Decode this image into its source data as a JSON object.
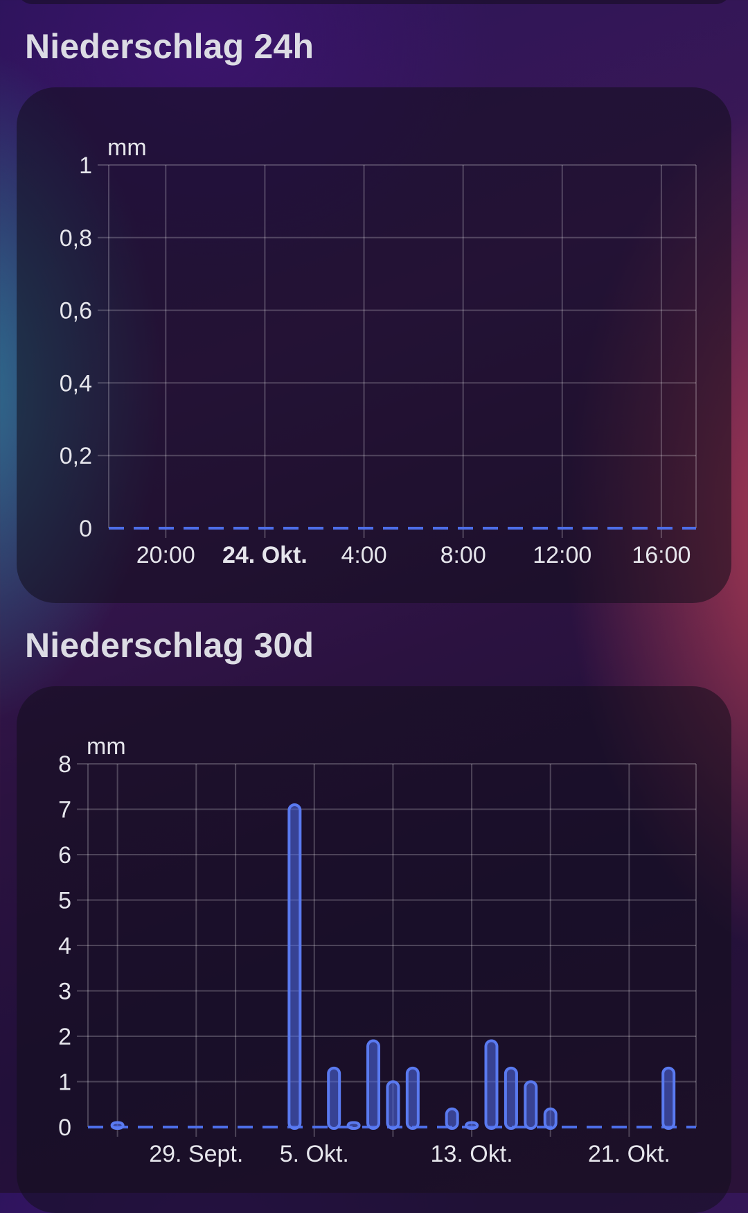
{
  "sections": [
    {
      "title": "Niederschlag 24h",
      "chart_data": {
        "type": "bar",
        "ylabel": "mm",
        "ylim": [
          0,
          1
        ],
        "yticks": [
          "0",
          "0,2",
          "0,4",
          "0,6",
          "0,8",
          "1"
        ],
        "xticks": [
          {
            "label": "20:00",
            "hour": 20,
            "bold": false
          },
          {
            "label": "24. Okt.",
            "hour": 24,
            "bold": true
          },
          {
            "label": "4:00",
            "hour": 28,
            "bold": false
          },
          {
            "label": "8:00",
            "hour": 32,
            "bold": false
          },
          {
            "label": "12:00",
            "hour": 36,
            "bold": false
          },
          {
            "label": "16:00",
            "hour": 40,
            "bold": false
          }
        ],
        "xlim": [
          17.7,
          41.4
        ],
        "values": [
          0,
          0,
          0,
          0,
          0,
          0,
          0,
          0,
          0,
          0,
          0,
          0,
          0,
          0,
          0,
          0,
          0,
          0,
          0,
          0,
          0,
          0,
          0,
          0
        ]
      }
    },
    {
      "title": "Niederschlag 30d",
      "chart_data": {
        "type": "bar",
        "ylabel": "mm",
        "ylim": [
          0,
          8
        ],
        "yticks": [
          "0",
          "1",
          "2",
          "3",
          "4",
          "5",
          "6",
          "7",
          "8"
        ],
        "xticks": [
          {
            "label": "29. Sept.",
            "day": 29,
            "bold": false
          },
          {
            "label": "5. Okt.",
            "day": 35,
            "bold": false
          },
          {
            "label": "13. Okt.",
            "day": 43,
            "bold": false
          },
          {
            "label": "21. Okt.",
            "day": 51,
            "bold": false
          }
        ],
        "xlim": [
          23.5,
          54.4
        ],
        "days": [
          24,
          25,
          26,
          27,
          28,
          29,
          30,
          31,
          32,
          33,
          34,
          35,
          36,
          37,
          38,
          39,
          40,
          41,
          42,
          43,
          44,
          45,
          46,
          47,
          48,
          49,
          50,
          51,
          52,
          53,
          54
        ],
        "values": [
          0,
          0.1,
          0,
          0,
          0,
          0,
          0,
          0,
          0,
          0,
          7.1,
          0,
          1.3,
          0.1,
          1.9,
          1.0,
          1.3,
          0,
          0.4,
          0.1,
          1.9,
          1.3,
          1.0,
          0.4,
          0,
          0,
          0,
          0,
          0,
          1.3,
          0
        ]
      }
    }
  ],
  "colors": {
    "bar_stroke": "#5a7af0",
    "bar_fill": "rgba(80,110,235,0.55)"
  }
}
